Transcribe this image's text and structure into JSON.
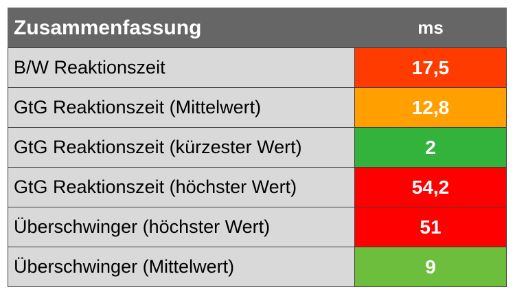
{
  "chart_data": {
    "type": "table",
    "header": {
      "label": "Zusammenfassung",
      "unit": "ms"
    },
    "rows": [
      {
        "label": "B/W Reaktionszeit",
        "value": "17,5",
        "color": "#ff3b00"
      },
      {
        "label": "GtG Reaktionszeit (Mittelwert)",
        "value": "12,8",
        "color": "#ff9f00"
      },
      {
        "label": "GtG Reaktionszeit (kürzester Wert)",
        "value": "2",
        "color": "#33b33c"
      },
      {
        "label": "GtG Reaktionszeit (höchster Wert)",
        "value": "54,2",
        "color": "#ff0000"
      },
      {
        "label": "Überschwinger (höchster Wert)",
        "value": "51",
        "color": "#ff0000"
      },
      {
        "label": "Überschwinger (Mittelwert)",
        "value": "9",
        "color": "#6cbe3c"
      }
    ]
  }
}
